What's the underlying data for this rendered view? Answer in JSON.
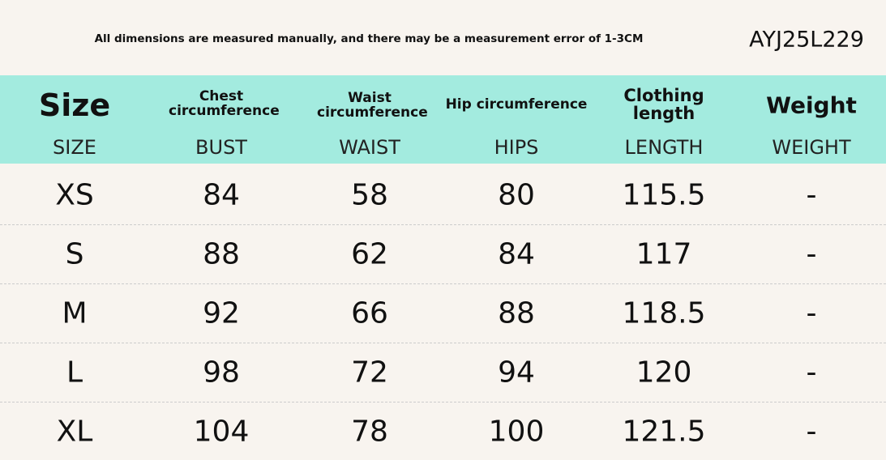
{
  "header": {
    "note": "All dimensions are measured manually, and there may be a measurement error of 1-3CM",
    "code": "AYJ25L229"
  },
  "table": {
    "columns": [
      {
        "label": "Size",
        "sublabel": "SIZE"
      },
      {
        "label": "Chest circumference",
        "sublabel": "BUST"
      },
      {
        "label": "Waist circumference",
        "sublabel": "WAIST"
      },
      {
        "label": "Hip circumference",
        "sublabel": "HIPS"
      },
      {
        "label": "Clothing length",
        "sublabel": "LENGTH"
      },
      {
        "label": "Weight",
        "sublabel": "WEIGHT"
      }
    ],
    "rows": [
      [
        "XS",
        84,
        58,
        80,
        115.5,
        "-"
      ],
      [
        "S",
        88,
        62,
        84,
        117,
        "-"
      ],
      [
        "M",
        92,
        66,
        88,
        118.5,
        "-"
      ],
      [
        "L",
        98,
        72,
        94,
        120,
        "-"
      ],
      [
        "XL",
        104,
        78,
        100,
        121.5,
        "-"
      ]
    ]
  }
}
